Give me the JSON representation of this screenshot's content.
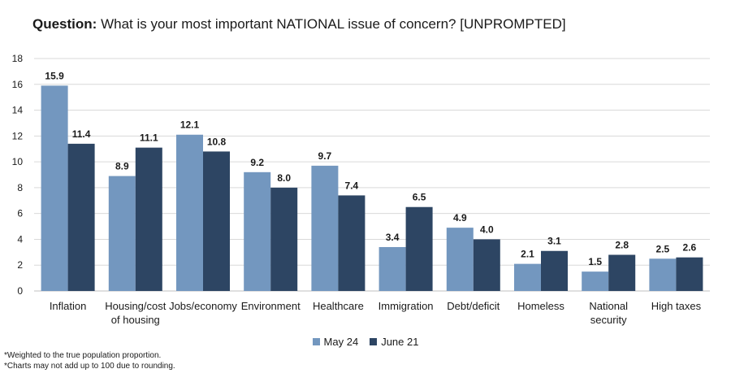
{
  "title": {
    "prefix": "Question:",
    "text": " What is your most important NATIONAL issue of concern? [UNPROMPTED]"
  },
  "chart_data": {
    "type": "bar",
    "categories": [
      [
        "Inflation"
      ],
      [
        "Housing/cost",
        "of housing"
      ],
      [
        "Jobs/economy"
      ],
      [
        "Environment"
      ],
      [
        "Healthcare"
      ],
      [
        "Immigration"
      ],
      [
        "Debt/deficit"
      ],
      [
        "Homeless"
      ],
      [
        "National",
        "security"
      ],
      [
        "High taxes"
      ]
    ],
    "series": [
      {
        "name": "May 24",
        "color": "#7397bf",
        "values": [
          15.9,
          8.9,
          12.1,
          9.2,
          9.7,
          3.4,
          4.9,
          2.1,
          1.5,
          2.5
        ]
      },
      {
        "name": "June 21",
        "color": "#2d4563",
        "values": [
          11.4,
          11.1,
          10.8,
          8.0,
          7.4,
          6.5,
          4.0,
          3.1,
          2.8,
          2.6
        ]
      }
    ],
    "ylim": [
      0,
      18
    ],
    "yticks": [
      0,
      2,
      4,
      6,
      8,
      10,
      12,
      14,
      16,
      18
    ],
    "grid": true,
    "legend_position": "bottom",
    "xlabel": "",
    "ylabel": ""
  },
  "notes": [
    "*Weighted to the true population proportion.",
    "*Charts may not add up to 100 due to rounding."
  ]
}
